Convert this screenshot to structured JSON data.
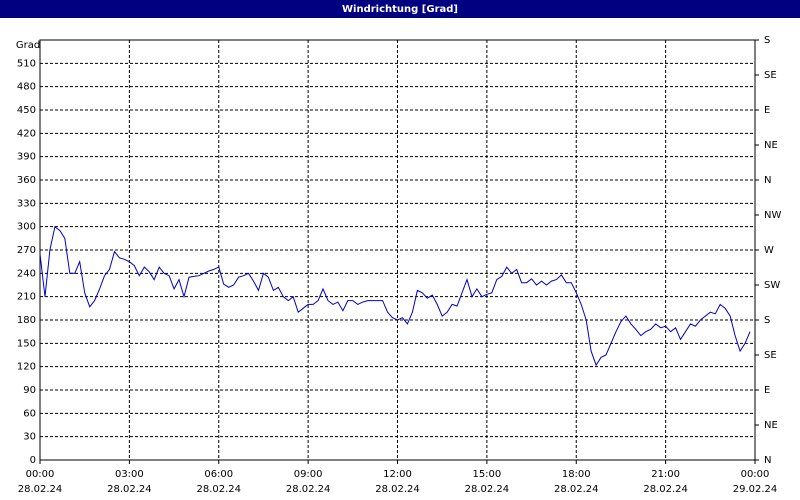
{
  "chart_data": {
    "type": "line",
    "title": "Windrichtung [Grad]",
    "ylabel": "Grad",
    "ylim": [
      0,
      540
    ],
    "yticks": [
      0,
      30,
      60,
      90,
      120,
      150,
      180,
      210,
      240,
      270,
      300,
      330,
      360,
      390,
      420,
      450,
      480,
      510
    ],
    "y2lim": [
      0,
      540
    ],
    "y2ticks": [
      {
        "value": 0,
        "label": "N"
      },
      {
        "value": 45,
        "label": "NE"
      },
      {
        "value": 90,
        "label": "E"
      },
      {
        "value": 135,
        "label": "SE"
      },
      {
        "value": 180,
        "label": "S"
      },
      {
        "value": 225,
        "label": "SW"
      },
      {
        "value": 270,
        "label": "W"
      },
      {
        "value": 315,
        "label": "NW"
      },
      {
        "value": 360,
        "label": "N"
      },
      {
        "value": 405,
        "label": "NE"
      },
      {
        "value": 450,
        "label": "E"
      },
      {
        "value": 495,
        "label": "SE"
      },
      {
        "value": 540,
        "label": "S"
      }
    ],
    "xticks": [
      "00:00",
      "03:00",
      "06:00",
      "09:00",
      "12:00",
      "15:00",
      "18:00",
      "21:00",
      "00:00"
    ],
    "xtick_dates": [
      "28.02.24",
      "28.02.24",
      "28.02.24",
      "28.02.24",
      "28.02.24",
      "28.02.24",
      "28.02.24",
      "28.02.24",
      "29.02.24"
    ],
    "grid": true,
    "x": [
      "00:00",
      "00:10",
      "00:20",
      "00:30",
      "00:40",
      "00:50",
      "01:00",
      "01:10",
      "01:20",
      "01:30",
      "01:40",
      "01:50",
      "02:00",
      "02:10",
      "02:20",
      "02:30",
      "02:40",
      "02:50",
      "03:00",
      "03:10",
      "03:20",
      "03:30",
      "03:40",
      "03:50",
      "04:00",
      "04:10",
      "04:20",
      "04:30",
      "04:40",
      "04:50",
      "05:00",
      "05:10",
      "05:20",
      "05:30",
      "05:40",
      "05:50",
      "06:00",
      "06:10",
      "06:20",
      "06:30",
      "06:40",
      "06:50",
      "07:00",
      "07:10",
      "07:20",
      "07:30",
      "07:40",
      "07:50",
      "08:00",
      "08:10",
      "08:20",
      "08:30",
      "08:40",
      "08:50",
      "09:00",
      "09:10",
      "09:20",
      "09:30",
      "09:40",
      "09:50",
      "10:00",
      "10:10",
      "10:20",
      "10:30",
      "10:40",
      "10:50",
      "11:00",
      "11:10",
      "11:20",
      "11:30",
      "11:40",
      "11:50",
      "12:00",
      "12:10",
      "12:20",
      "12:30",
      "12:40",
      "12:50",
      "13:00",
      "13:10",
      "13:20",
      "13:30",
      "13:40",
      "13:50",
      "14:00",
      "14:10",
      "14:20",
      "14:30",
      "14:40",
      "14:50",
      "15:00",
      "15:10",
      "15:20",
      "15:30",
      "15:40",
      "15:50",
      "16:00",
      "16:10",
      "16:20",
      "16:30",
      "16:40",
      "16:50",
      "17:00",
      "17:10",
      "17:20",
      "17:30",
      "17:40",
      "17:50",
      "18:00",
      "18:10",
      "18:20",
      "18:30",
      "18:40",
      "18:50",
      "19:00",
      "19:10",
      "19:20",
      "19:30",
      "19:40",
      "19:50",
      "20:00",
      "20:10",
      "20:20",
      "20:30",
      "20:40",
      "20:50",
      "21:00",
      "21:10",
      "21:20",
      "21:30",
      "21:40",
      "21:50",
      "22:00",
      "22:10",
      "22:20",
      "22:30",
      "22:40",
      "22:50",
      "23:00",
      "23:10",
      "23:20",
      "23:30",
      "23:40",
      "23:50"
    ],
    "series": [
      {
        "name": "Windrichtung",
        "color": "#0000c8",
        "values": [
          265,
          210,
          270,
          300,
          295,
          285,
          240,
          240,
          255,
          215,
          197,
          205,
          220,
          237,
          245,
          268,
          260,
          258,
          255,
          250,
          237,
          248,
          242,
          232,
          248,
          240,
          237,
          220,
          232,
          210,
          235,
          236,
          237,
          240,
          243,
          245,
          248,
          226,
          222,
          225,
          235,
          237,
          240,
          230,
          218,
          240,
          235,
          218,
          222,
          210,
          205,
          210,
          190,
          195,
          200,
          200,
          205,
          220,
          205,
          200,
          203,
          192,
          205,
          205,
          200,
          203,
          205,
          205,
          205,
          205,
          190,
          183,
          180,
          183,
          175,
          190,
          218,
          215,
          208,
          212,
          200,
          185,
          190,
          200,
          198,
          215,
          232,
          210,
          220,
          210,
          213,
          215,
          232,
          236,
          248,
          240,
          245,
          228,
          228,
          233,
          225,
          230,
          225,
          230,
          232,
          238,
          228,
          228,
          215,
          200,
          180,
          140,
          122,
          132,
          135,
          150,
          165,
          178,
          185,
          175,
          168,
          160,
          165,
          168,
          175,
          170,
          172,
          165,
          170,
          155,
          165,
          175,
          172,
          180,
          185,
          190,
          188,
          200,
          195,
          185,
          160,
          140,
          150,
          165
        ]
      }
    ]
  }
}
